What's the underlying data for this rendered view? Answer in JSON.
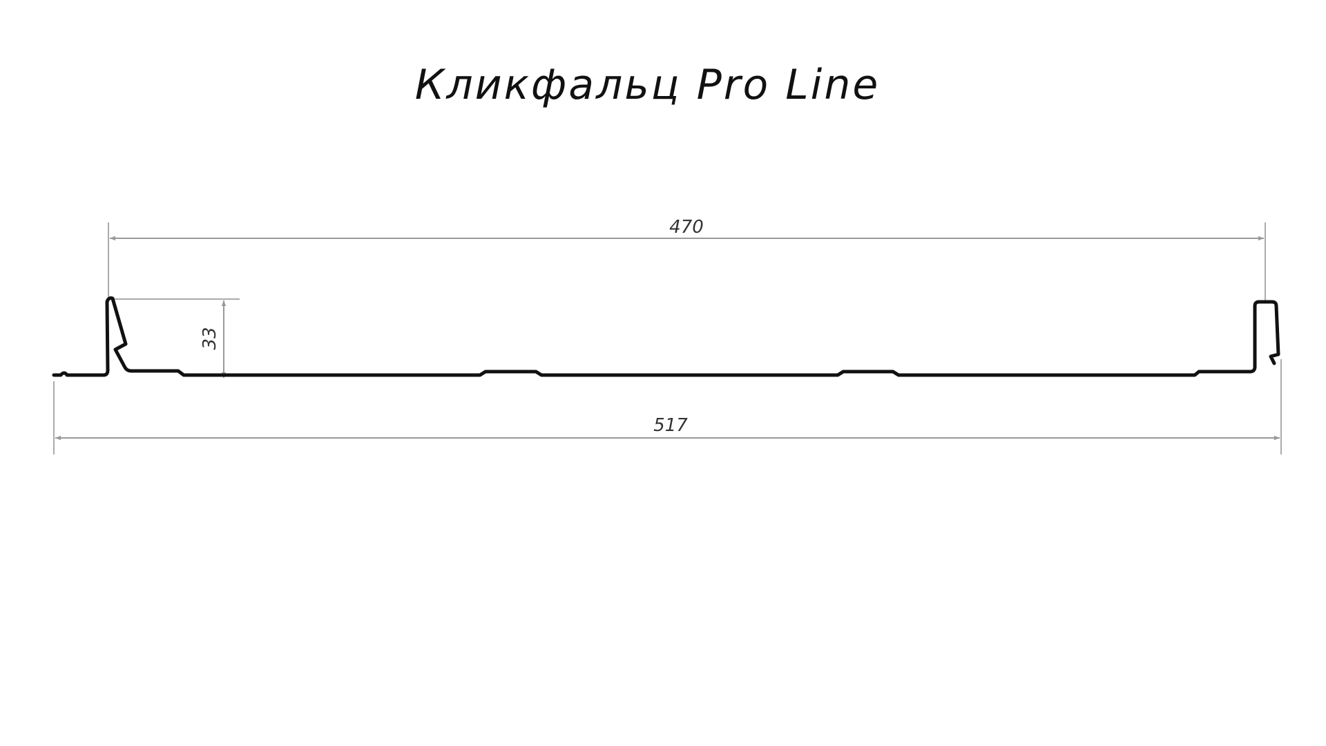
{
  "title": "Кликфальц Pro Line",
  "dimensions": {
    "working_width": "470",
    "total_width": "517",
    "rib_height": "33"
  },
  "colors": {
    "profile": "#111111",
    "dimension_lines": "#999999"
  }
}
